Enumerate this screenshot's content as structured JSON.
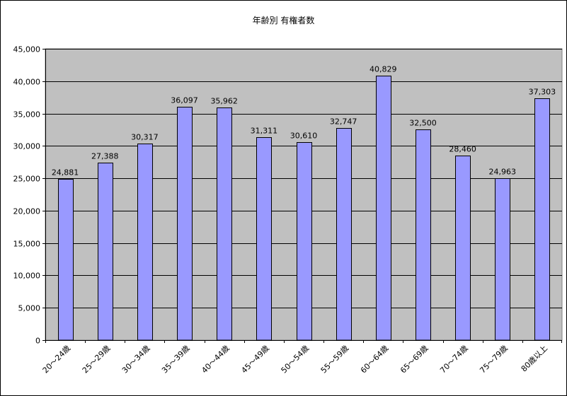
{
  "chart_data": {
    "type": "bar",
    "title": "年齢別 有権者数",
    "categories": [
      "20～24歳",
      "25～29歳",
      "30～34歳",
      "35～39歳",
      "40～44歳",
      "45～49歳",
      "50～54歳",
      "55～59歳",
      "60～64歳",
      "65～69歳",
      "70～74歳",
      "75～79歳",
      "80歳以上"
    ],
    "series": [
      {
        "values": [
          24881,
          27388,
          30317,
          36097,
          35962,
          31311,
          30610,
          32747,
          40829,
          32500,
          28460,
          24963,
          37303
        ]
      }
    ],
    "data_labels": [
      "24,881",
      "27,388",
      "30,317",
      "36,097",
      "35,962",
      "31,311",
      "30,610",
      "32,747",
      "40,829",
      "32,500",
      "28,460",
      "24,963",
      "37,303"
    ],
    "y_ticks": [
      "0",
      "5,000",
      "10,000",
      "15,000",
      "20,000",
      "25,000",
      "30,000",
      "35,000",
      "40,000",
      "45,000"
    ],
    "ylim": [
      0,
      45000
    ],
    "y_step": 5000,
    "grid": true,
    "legend": "none",
    "colors": {
      "plot_background": "#c0c0c0",
      "bar_fill": "#9999ff",
      "bar_stroke": "#000000",
      "gridline": "#000000"
    }
  }
}
